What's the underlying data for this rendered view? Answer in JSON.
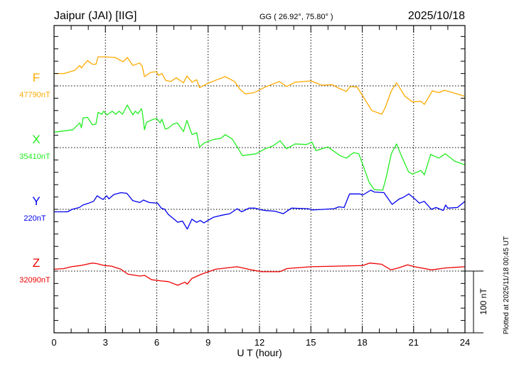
{
  "header": {
    "station": "Jaipur (JAI)  [IIG]",
    "coords": "GG ( 26.92°,  75.80° )",
    "date": "2025/10/18"
  },
  "footer": {
    "plotted": "Plotted at 2025/11/18 00:45 UT",
    "scale_label": "100 nT"
  },
  "chart_data": {
    "type": "line",
    "title": "Jaipur (JAI)  [IIG]",
    "xlabel": "U T (hour)",
    "xlim": [
      0,
      24
    ],
    "xticks": [
      "0",
      "3",
      "6",
      "9",
      "12",
      "15",
      "18",
      "21",
      "24"
    ],
    "grid": true,
    "scale_nT": 100,
    "series": [
      {
        "name": "F",
        "baseline": "47790nT",
        "color": "#ffaa00",
        "x": [
          0,
          0.58,
          1.2,
          1.5,
          1.6,
          1.95,
          2.24,
          2.45,
          2.57,
          2.95,
          3.57,
          4.03,
          4.28,
          4.6,
          5.0,
          5.15,
          5.28,
          5.65,
          5.98,
          6.1,
          6.3,
          6.52,
          6.8,
          7.14,
          7.56,
          7.76,
          8.06,
          8.33,
          8.5,
          8.9,
          9.43,
          10.0,
          10.55,
          10.84,
          11.17,
          11.67,
          12.13,
          12.33,
          13.16,
          13.58,
          14.08,
          15.0,
          15.66,
          16.24,
          16.57,
          17.07,
          17.3,
          17.7,
          18.0,
          18.56,
          19.14,
          19.35,
          19.7,
          20.0,
          20.5,
          20.93,
          21.43,
          21.63,
          22.1,
          22.47,
          22.8,
          24.0
        ],
        "y": [
          20,
          20,
          25,
          33,
          29,
          41,
          35,
          35,
          47,
          47,
          46,
          39,
          46,
          33,
          37,
          32,
          15,
          22,
          23,
          17,
          20,
          9,
          7,
          13,
          5,
          16,
          6,
          10,
          -3,
          3,
          9,
          15,
          7,
          -5,
          -13,
          -11,
          -5,
          -2,
          7,
          -1,
          6,
          8,
          1,
          2,
          -3,
          -9,
          -1,
          -2,
          -15,
          -40,
          -46,
          -35,
          -8,
          5,
          -17,
          -26,
          -25,
          -30,
          -8,
          -11,
          -7,
          -17
        ]
      },
      {
        "name": "X",
        "baseline": "35410nT",
        "color": "#22ee22",
        "x": [
          0,
          1.1,
          1.5,
          1.6,
          1.7,
          1.95,
          2.24,
          2.45,
          2.57,
          2.8,
          2.9,
          3.1,
          3.4,
          3.6,
          3.8,
          4.0,
          4.28,
          4.6,
          4.75,
          4.9,
          5.1,
          5.15,
          5.28,
          5.4,
          5.8,
          6.0,
          6.2,
          6.3,
          6.5,
          6.7,
          6.95,
          7.2,
          7.56,
          7.76,
          8.06,
          8.33,
          8.5,
          8.8,
          9.3,
          9.75,
          10.0,
          10.4,
          10.7,
          11.0,
          11.8,
          12.33,
          12.8,
          13.2,
          13.58,
          14.08,
          14.75,
          15.05,
          15.3,
          16.0,
          16.7,
          17.07,
          17.5,
          17.8,
          18.0,
          18.4,
          18.7,
          19.2,
          19.4,
          19.7,
          20.0,
          20.3,
          20.7,
          20.93,
          21.43,
          21.63,
          22.0,
          22.47,
          22.85,
          23.4,
          24.0
        ],
        "y": [
          25,
          29,
          40,
          32,
          48,
          49,
          37,
          38,
          57,
          54,
          59,
          53,
          59,
          54,
          59,
          54,
          69,
          53,
          59,
          55,
          63,
          59,
          29,
          41,
          46,
          47,
          40,
          46,
          30,
          32,
          38,
          40,
          26,
          44,
          21,
          24,
          1,
          8,
          13,
          15,
          21,
          14,
          1,
          -13,
          -10,
          -2,
          3,
          11,
          -2,
          6,
          5,
          9,
          -5,
          1,
          -13,
          -17,
          -8,
          -10,
          -25,
          -56,
          -68,
          -69,
          -48,
          -10,
          6,
          -14,
          -39,
          -43,
          -37,
          -44,
          -11,
          -17,
          -10,
          -22,
          -28
        ]
      },
      {
        "name": "Y",
        "baseline": "220nT",
        "color": "#0000ee",
        "x": [
          0,
          0.79,
          1.06,
          1.48,
          1.69,
          2.03,
          2.31,
          2.52,
          2.73,
          2.87,
          3.07,
          3.21,
          3.49,
          3.9,
          4.25,
          4.6,
          5.01,
          5.22,
          5.56,
          6.05,
          6.26,
          6.46,
          6.67,
          7.23,
          7.5,
          7.78,
          8.05,
          8.33,
          8.54,
          8.75,
          9.3,
          9.72,
          10.27,
          10.69,
          10.96,
          11.38,
          11.72,
          12.14,
          12.35,
          12.9,
          13.39,
          13.87,
          14.84,
          15.12,
          16.36,
          16.64,
          16.94,
          17.26,
          17.88,
          18.02,
          18.5,
          18.7,
          19.27,
          19.47,
          19.75,
          20.17,
          20.37,
          20.72,
          21.07,
          21.34,
          21.62,
          22.04,
          22.31,
          22.73,
          22.87,
          23.0,
          23.56,
          24.0
        ],
        "y": [
          -4,
          -4,
          0,
          3,
          7,
          10,
          13,
          22,
          18,
          16,
          22,
          17,
          24,
          27,
          26,
          14,
          11,
          15,
          11,
          10,
          2,
          0,
          -8,
          -21,
          -19,
          -32,
          -16,
          -21,
          -18,
          -22,
          -13,
          -10,
          -7,
          1,
          -4,
          2,
          2,
          -1,
          -2,
          -3,
          -7,
          2,
          1,
          -1,
          1,
          4,
          3,
          25,
          25,
          23,
          31,
          28,
          27,
          19,
          8,
          17,
          19,
          25,
          17,
          10,
          13,
          0,
          3,
          -2,
          7,
          2,
          3,
          13
        ]
      },
      {
        "name": "Z",
        "baseline": "32090nT",
        "color": "#ee0000",
        "x": [
          0,
          0.58,
          1.0,
          1.55,
          2.24,
          2.52,
          2.94,
          3.35,
          3.9,
          4.32,
          5.01,
          5.29,
          5.7,
          6.26,
          6.67,
          7.23,
          7.64,
          7.78,
          8.05,
          8.61,
          9.44,
          10.69,
          11.52,
          12.14,
          13.18,
          13.6,
          15.0,
          16.64,
          18.02,
          18.43,
          19.13,
          19.68,
          20.1,
          20.65,
          21.07,
          22.04,
          22.87,
          24.0
        ],
        "y": [
          3,
          4,
          7,
          9,
          13,
          12,
          9,
          8,
          3,
          -5,
          -8,
          -7,
          -14,
          -16,
          -17,
          -23,
          -18,
          -21,
          -12,
          -5,
          3,
          7,
          2,
          -1,
          -1,
          4,
          7,
          8,
          9,
          13,
          11,
          2,
          5,
          10,
          7,
          2,
          5,
          7
        ]
      }
    ]
  }
}
